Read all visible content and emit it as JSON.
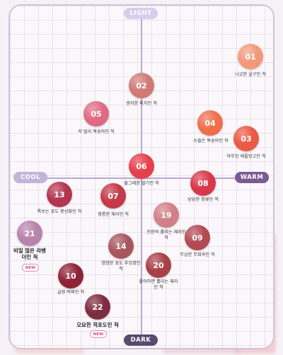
{
  "axes": {
    "top": "LIGHT",
    "bottom": "DARK",
    "left": "COOL",
    "right": "WARM"
  },
  "items": [
    {
      "num": "01",
      "label": "나긋한 살구인 척",
      "color": "#f19a7a"
    },
    {
      "num": "02",
      "label": "센치한 피치인 척",
      "color": "#cf7a76"
    },
    {
      "num": "05",
      "label": "저 멀리 복숭아인 척",
      "color": "#e06a82"
    },
    {
      "num": "04",
      "label": "수줍은 복숭아인 척",
      "color": "#ef6e4c"
    },
    {
      "num": "03",
      "label": "야무진 애플망고인 척",
      "color": "#ea5a45"
    },
    {
      "num": "06",
      "label": "불그레한 딸기인 척",
      "color": "#e63f4e"
    },
    {
      "num": "08",
      "label": "당당한 청류인 척",
      "color": "#d8384a"
    },
    {
      "num": "13",
      "label": "톡쏘는 포도 봉선화인 척",
      "color": "#b3344f"
    },
    {
      "num": "07",
      "label": "영롱한 체리인 척",
      "color": "#c43a48"
    },
    {
      "num": "19",
      "label": "진한의 흘리는 체리인 척",
      "color": "#d08086"
    },
    {
      "num": "21",
      "label": "비밀 많은 라벤더인 척",
      "color": "#b883ad"
    },
    {
      "num": "14",
      "label": "밤밤한 포도 추잉껌인 척",
      "color": "#a8565e"
    },
    {
      "num": "09",
      "label": "무심한 무화과인 척",
      "color": "#b24a52"
    },
    {
      "num": "20",
      "label": "좋아하면 흘리는 체리인 척",
      "color": "#a84048"
    },
    {
      "num": "10",
      "label": "글썽 버찌인 척",
      "color": "#8e2336"
    },
    {
      "num": "22",
      "label": "오묘한 적포도인 척",
      "color": "#7e2c3f"
    }
  ],
  "new_badge": "NEW"
}
